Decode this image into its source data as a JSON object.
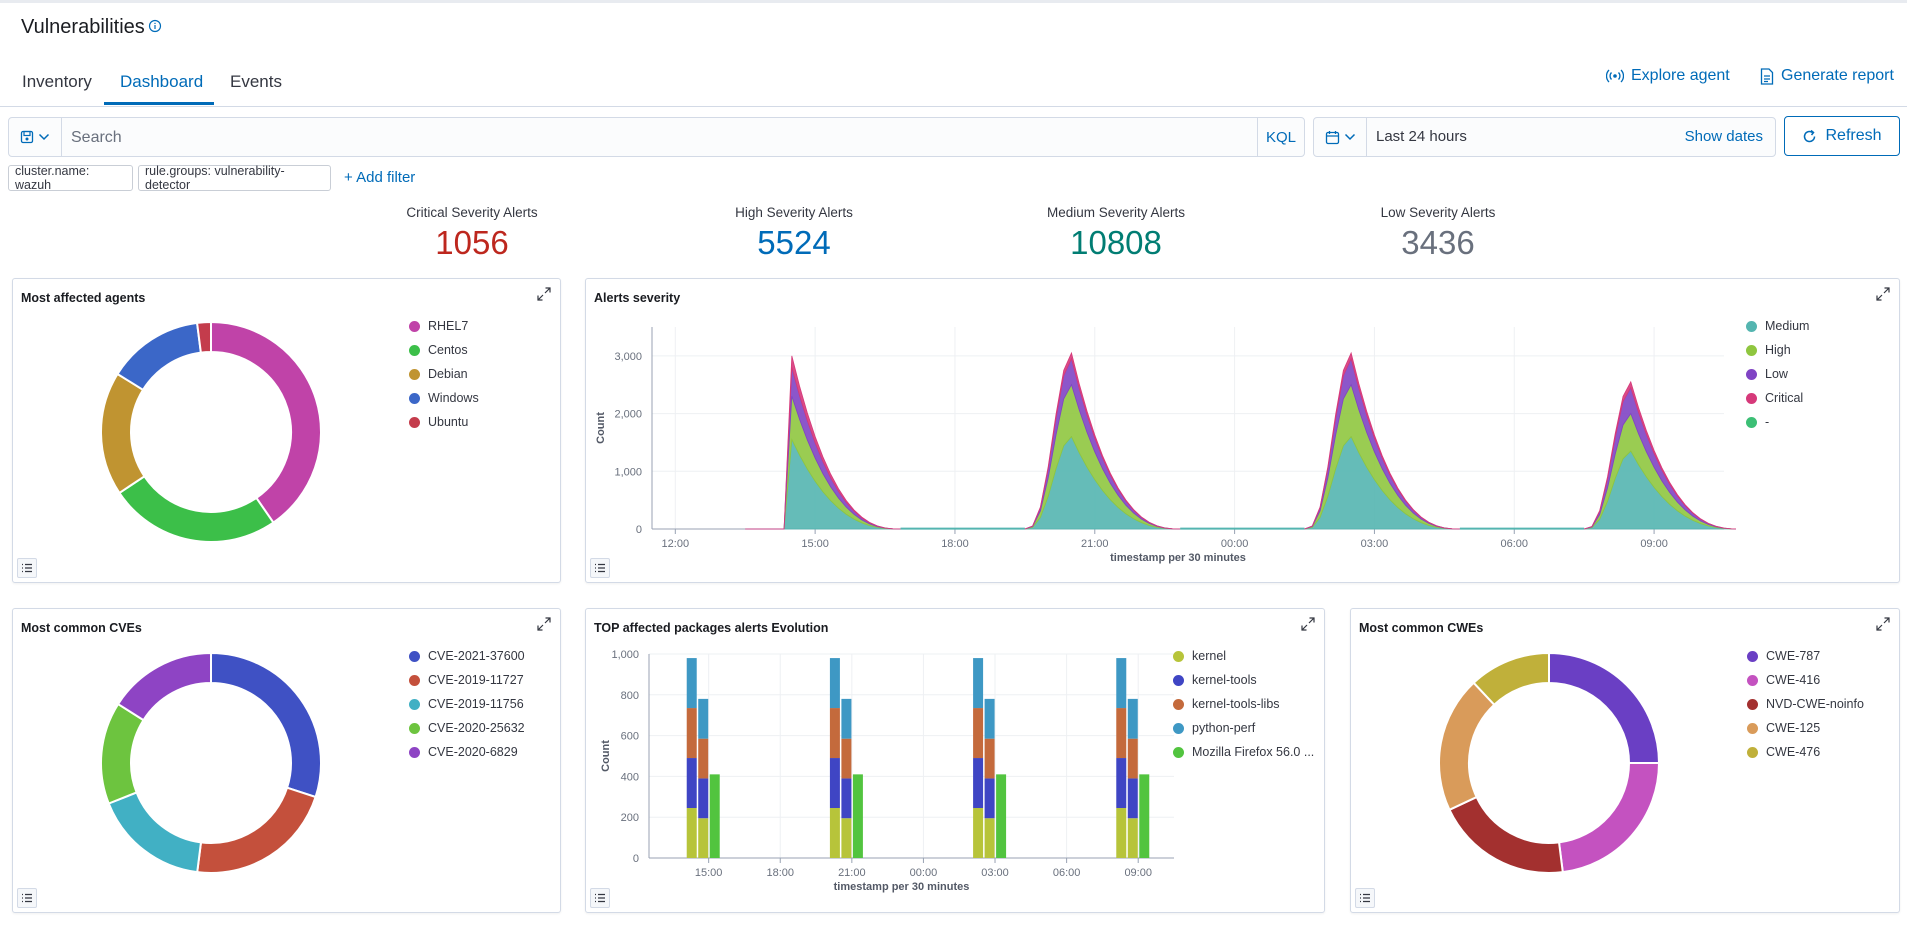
{
  "header": {
    "title": "Vulnerabilities",
    "explore_label": "Explore agent",
    "report_label": "Generate report"
  },
  "tabs": [
    {
      "label": "Inventory"
    },
    {
      "label": "Dashboard",
      "active": true
    },
    {
      "label": "Events"
    }
  ],
  "query": {
    "placeholder": "Search",
    "language": "KQL"
  },
  "time": {
    "range": "Last 24 hours",
    "show_dates": "Show dates",
    "refresh": "Refresh"
  },
  "filters": [
    {
      "label": "cluster.name: wazuh"
    },
    {
      "label": "rule.groups: vulnerability-detector"
    }
  ],
  "add_filter": "+ Add filter",
  "stats": [
    {
      "label": "Critical Severity Alerts",
      "value": "1056",
      "color": "#bd271e"
    },
    {
      "label": "High Severity Alerts",
      "value": "5524",
      "color": "#006bb8"
    },
    {
      "label": "Medium Severity Alerts",
      "value": "10808",
      "color": "#017d73"
    },
    {
      "label": "Low Severity Alerts",
      "value": "3436",
      "color": "#69707d"
    }
  ],
  "panels": {
    "agents": {
      "title": "Most affected agents"
    },
    "severity": {
      "title": "Alerts severity"
    },
    "cves": {
      "title": "Most common CVEs"
    },
    "packages": {
      "title": "TOP affected packages alerts Evolution"
    },
    "cwes": {
      "title": "Most common CWEs"
    }
  },
  "chart_data": [
    {
      "type": "pie",
      "title": "Most affected agents",
      "labels": [
        "RHEL7",
        "Centos",
        "Debian",
        "Windows",
        "Ubuntu"
      ],
      "values": [
        40,
        25,
        18,
        14,
        2
      ],
      "colors": [
        "#c043a8",
        "#3cbf49",
        "#c09431",
        "#3b67c8",
        "#c43c4c"
      ],
      "donut": true,
      "legend": "right"
    },
    {
      "type": "area",
      "title": "Alerts severity",
      "xlabel": "timestamp per 30 minutes",
      "ylabel": "Count",
      "x_ticks": [
        "12:00",
        "15:00",
        "18:00",
        "21:00",
        "00:00",
        "03:00",
        "06:00",
        "09:00"
      ],
      "ylim": [
        0,
        3500
      ],
      "y_ticks": [
        "0",
        "1,000",
        "2,000",
        "3,000"
      ],
      "stacked": true,
      "grid": true,
      "legend": "right",
      "series": [
        {
          "name": "Medium",
          "color": "#54b5b0"
        },
        {
          "name": "High",
          "color": "#8fc63f"
        },
        {
          "name": "Low",
          "color": "#8044c4"
        },
        {
          "name": "Critical",
          "color": "#d6397a"
        },
        {
          "name": "-",
          "color": "#3cbf75"
        }
      ],
      "peaks": [
        {
          "x": "14:30",
          "medium": 1550,
          "high": 750,
          "low": 500,
          "critical": 200
        },
        {
          "x": "20:30",
          "medium": 1600,
          "high": 900,
          "low": 450,
          "critical": 100
        },
        {
          "x": "02:30",
          "medium": 1600,
          "high": 900,
          "low": 450,
          "critical": 100
        },
        {
          "x": "08:30",
          "medium": 1350,
          "high": 650,
          "low": 450,
          "critical": 100
        }
      ]
    },
    {
      "type": "pie",
      "title": "Most common CVEs",
      "labels": [
        "CVE-2021-37600",
        "CVE-2019-11727",
        "CVE-2019-11756",
        "CVE-2020-25632",
        "CVE-2020-6829"
      ],
      "values": [
        30,
        22,
        17,
        15,
        16
      ],
      "colors": [
        "#3f51c4",
        "#c4503c",
        "#41b0c4",
        "#6dc43f",
        "#8e44c4"
      ],
      "donut": true,
      "legend": "right"
    },
    {
      "type": "bar",
      "title": "TOP affected packages alerts Evolution",
      "xlabel": "timestamp per 30 minutes",
      "ylabel": "Count",
      "x_ticks": [
        "15:00",
        "18:00",
        "21:00",
        "00:00",
        "03:00",
        "06:00",
        "09:00"
      ],
      "ylim": [
        0,
        1000
      ],
      "y_ticks": [
        "0",
        "200",
        "400",
        "600",
        "800",
        "1,000"
      ],
      "stacked": true,
      "grid": true,
      "legend": "right",
      "series": [
        {
          "name": "kernel",
          "color": "#b7c43a"
        },
        {
          "name": "kernel-tools",
          "color": "#3f45c4"
        },
        {
          "name": "kernel-tools-libs",
          "color": "#c46a3c"
        },
        {
          "name": "python-perf",
          "color": "#3e98c4"
        },
        {
          "name": "Mozilla Firefox 56.0 ...",
          "color": "#52c43f"
        }
      ],
      "groups": [
        {
          "x": "14:00",
          "bars": [
            {
              "kernel": 245,
              "kernel-tools": 245,
              "kernel-tools-libs": 245,
              "python-perf": 245
            },
            {
              "kernel": 195,
              "kernel-tools": 195,
              "kernel-tools-libs": 195,
              "python-perf": 195
            },
            {
              "Mozilla Firefox 56.0 ...": 410
            }
          ]
        },
        {
          "x": "20:00",
          "bars": [
            {
              "kernel": 245,
              "kernel-tools": 245,
              "kernel-tools-libs": 245,
              "python-perf": 245
            },
            {
              "kernel": 195,
              "kernel-tools": 195,
              "kernel-tools-libs": 195,
              "python-perf": 195
            },
            {
              "Mozilla Firefox 56.0 ...": 410
            }
          ]
        },
        {
          "x": "02:00",
          "bars": [
            {
              "kernel": 245,
              "kernel-tools": 245,
              "kernel-tools-libs": 245,
              "python-perf": 245
            },
            {
              "kernel": 195,
              "kernel-tools": 195,
              "kernel-tools-libs": 195,
              "python-perf": 195
            },
            {
              "Mozilla Firefox 56.0 ...": 410
            }
          ]
        },
        {
          "x": "08:00",
          "bars": [
            {
              "kernel": 245,
              "kernel-tools": 245,
              "kernel-tools-libs": 245,
              "python-perf": 245
            },
            {
              "kernel": 195,
              "kernel-tools": 195,
              "kernel-tools-libs": 195,
              "python-perf": 195
            },
            {
              "Mozilla Firefox 56.0 ...": 410
            }
          ]
        }
      ]
    },
    {
      "type": "pie",
      "title": "Most common CWEs",
      "labels": [
        "CWE-787",
        "CWE-416",
        "NVD-CWE-noinfo",
        "CWE-125",
        "CWE-476"
      ],
      "values": [
        25,
        23,
        20,
        20,
        12
      ],
      "colors": [
        "#6a3fc4",
        "#c452c0",
        "#a3302f",
        "#d99b5a",
        "#c0b03a"
      ],
      "donut": true,
      "legend": "right"
    }
  ]
}
